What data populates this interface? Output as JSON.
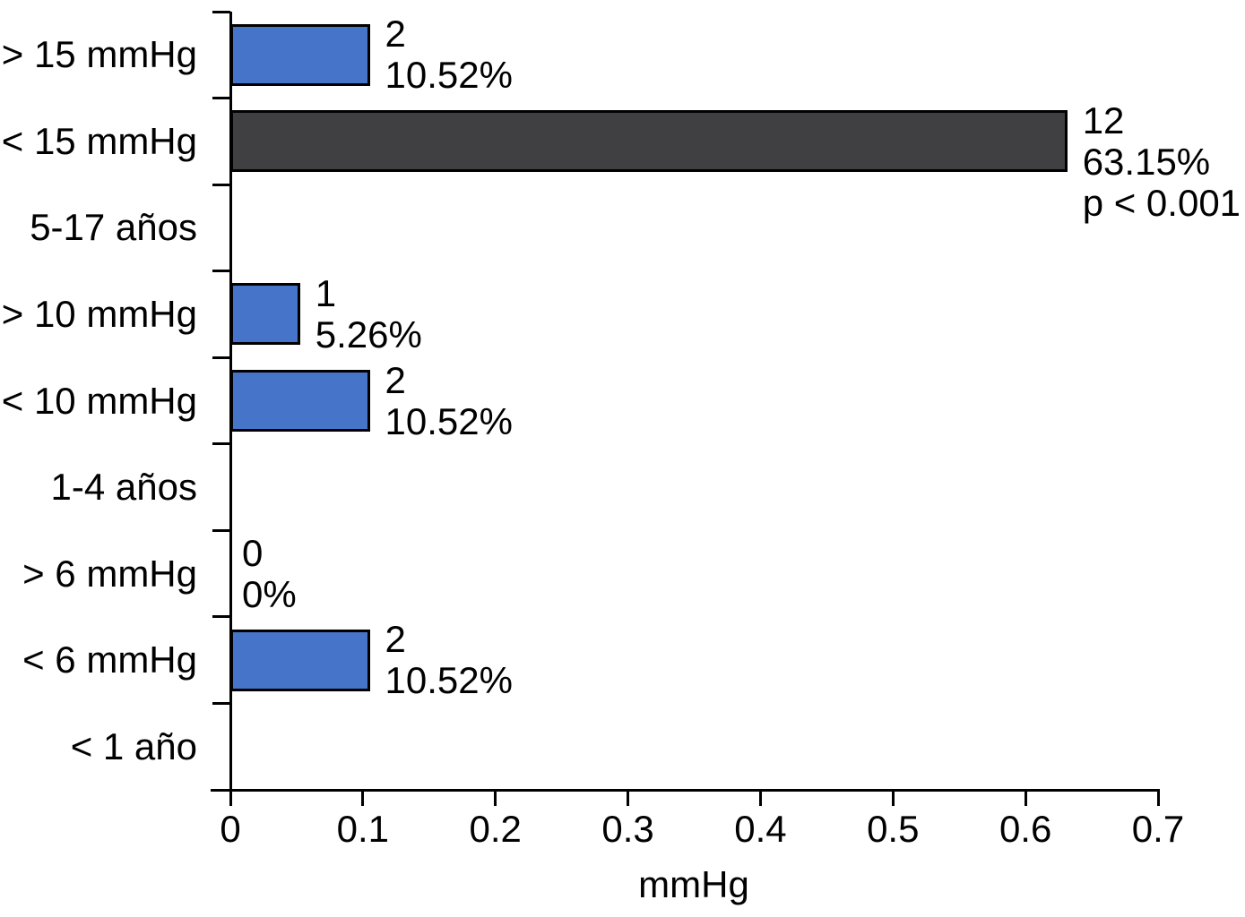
{
  "chart_data": {
    "type": "bar",
    "orientation": "horizontal",
    "title": "",
    "xlabel": "mmHg",
    "xlim": [
      0,
      0.7
    ],
    "x_ticks": [
      {
        "value": 0,
        "label": "0"
      },
      {
        "value": 0.1,
        "label": "0.1"
      },
      {
        "value": 0.2,
        "label": "0.2"
      },
      {
        "value": 0.3,
        "label": "0.3"
      },
      {
        "value": 0.4,
        "label": "0.4"
      },
      {
        "value": 0.5,
        "label": "0.5"
      },
      {
        "value": 0.6,
        "label": "0.6"
      },
      {
        "value": 0.7,
        "label": "0.7"
      }
    ],
    "grid": false,
    "legend": false,
    "annotation": "p < 0.001",
    "colors": {
      "bar_blue": "#4574C8",
      "bar_dark": "#404042",
      "outline": "#000000",
      "axis": "#000000",
      "text": "#000000"
    },
    "rows": [
      {
        "label": "> 15 mmHg",
        "value": 0.1052,
        "count": "2",
        "percent": "10.52%",
        "color": "blue"
      },
      {
        "label": "< 15 mmHg",
        "value": 0.6315,
        "count": "12",
        "percent": "63.15%",
        "color": "dark",
        "annotation": "p < 0.001"
      },
      {
        "label": "5-17 años",
        "value": null
      },
      {
        "label": "> 10 mmHg",
        "value": 0.0526,
        "count": "1",
        "percent": "5.26%",
        "color": "blue"
      },
      {
        "label": "< 10 mmHg",
        "value": 0.1052,
        "count": "2",
        "percent": "10.52%",
        "color": "blue"
      },
      {
        "label": "1-4 años",
        "value": null
      },
      {
        "label": "> 6 mmHg",
        "value": 0,
        "count": "0",
        "percent": "0%",
        "color": "blue"
      },
      {
        "label": "< 6 mmHg",
        "value": 0.1052,
        "count": "2",
        "percent": "10.52%",
        "color": "blue"
      },
      {
        "label": "< 1 año",
        "value": null
      }
    ]
  }
}
